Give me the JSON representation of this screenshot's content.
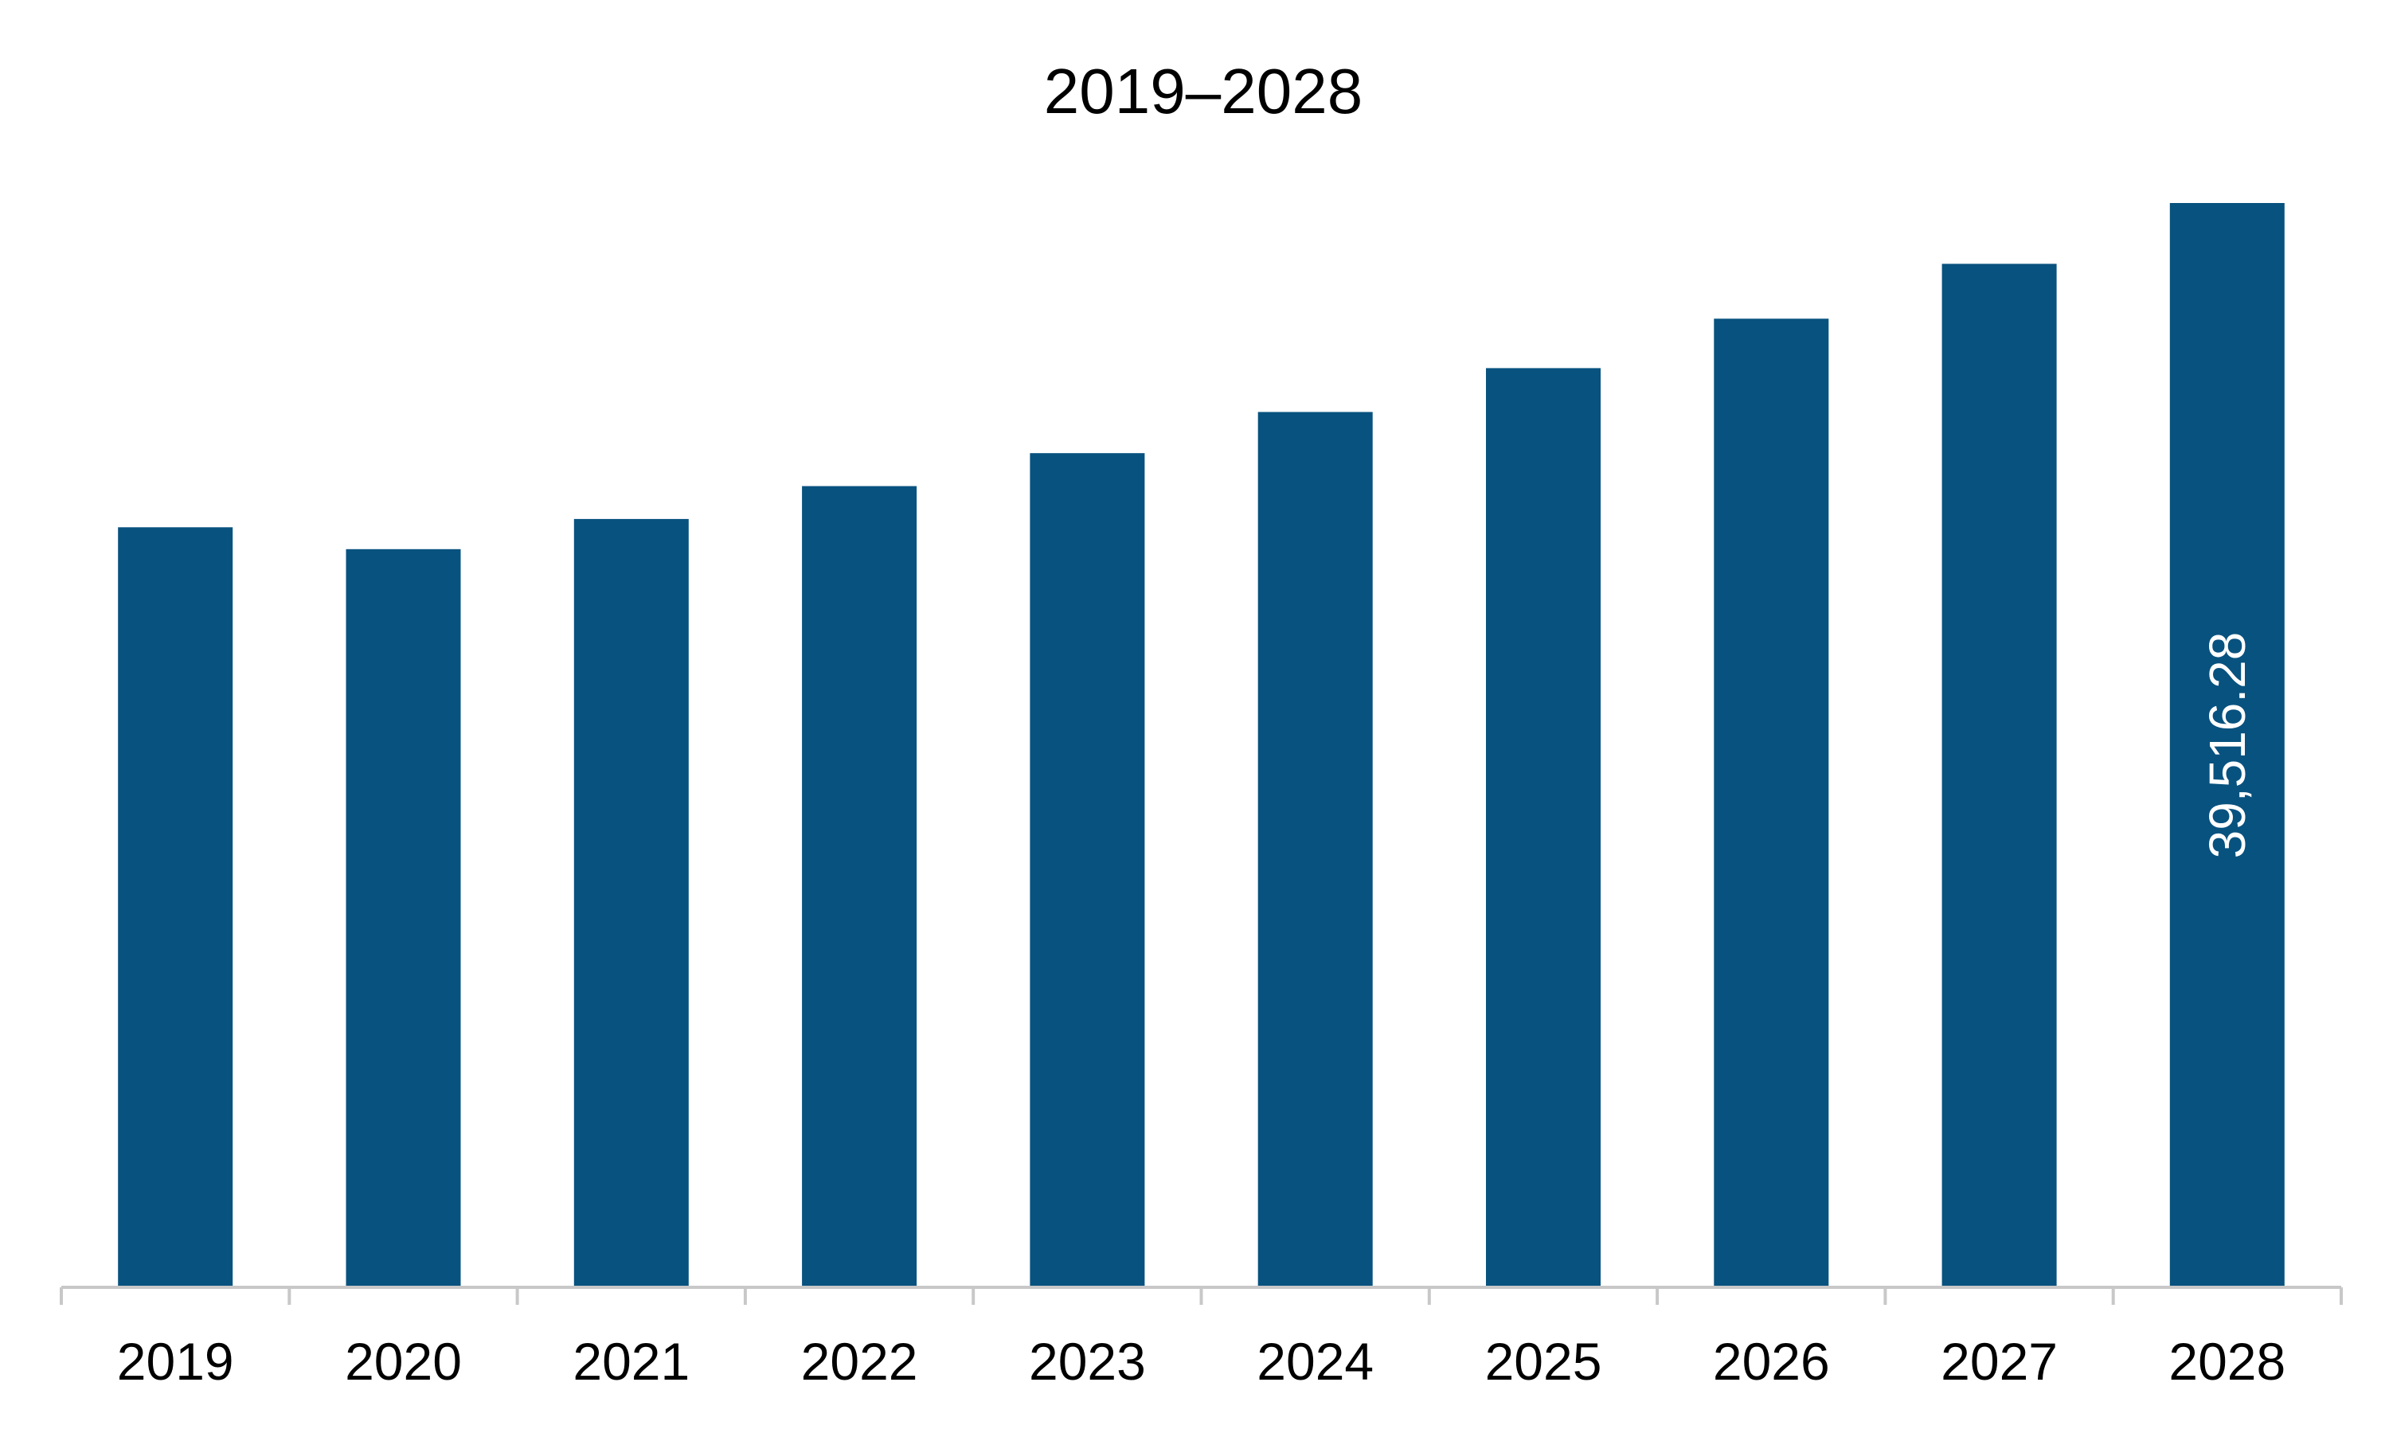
{
  "chart_data": {
    "type": "bar",
    "title": "2019–2028",
    "xlabel": "",
    "ylabel": "",
    "categories": [
      "2019",
      "2020",
      "2021",
      "2022",
      "2023",
      "2024",
      "2025",
      "2026",
      "2027",
      "2028"
    ],
    "values": [
      27700,
      26900,
      28000,
      29200,
      30400,
      31900,
      33500,
      35300,
      37300,
      39516.28
    ],
    "data_labels": [
      "",
      "",
      "",
      "",
      "",
      "",
      "",
      "",
      "",
      "39,516.28"
    ],
    "ylim": [
      0,
      39516.28
    ],
    "grid": false,
    "legend": "none",
    "bar_color": "#08527f",
    "axis_color": "#c8c8c8"
  }
}
